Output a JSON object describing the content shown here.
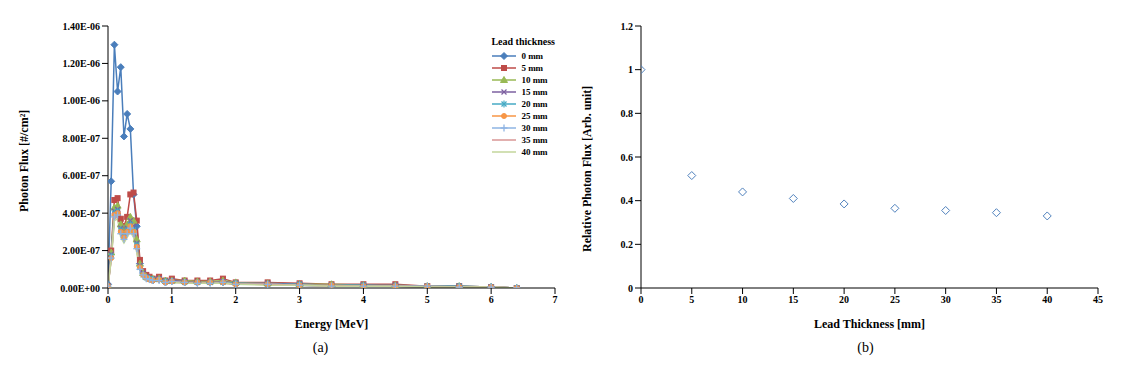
{
  "chart_data": [
    {
      "type": "line",
      "caption": "(a)",
      "x_label": "Energy [MeV]",
      "y_label": "Photon Flux [#/cm²]",
      "legend_title": "Lead thickness",
      "legend": "upper right",
      "grid": false,
      "x": [
        0,
        0.05,
        0.1,
        0.15,
        0.2,
        0.25,
        0.3,
        0.35,
        0.4,
        0.45,
        0.5,
        0.55,
        0.6,
        0.65,
        0.7,
        0.8,
        0.9,
        1.0,
        1.2,
        1.4,
        1.6,
        1.8,
        2.0,
        2.5,
        3.0,
        3.5,
        4.0,
        4.5,
        5.0,
        5.5,
        6.0,
        6.4
      ],
      "xlim": [
        0,
        7
      ],
      "xticks": [
        0,
        1,
        2,
        3,
        4,
        5,
        6,
        7
      ],
      "ylim": [
        0,
        1.4e-06
      ],
      "yticks": [
        {
          "value": 0,
          "label": "0.00E+00"
        },
        {
          "value": 2e-07,
          "label": "2.00E-07"
        },
        {
          "value": 4e-07,
          "label": "4.00E-07"
        },
        {
          "value": 6e-07,
          "label": "6.00E-07"
        },
        {
          "value": 8e-07,
          "label": "8.00E-07"
        },
        {
          "value": 1e-06,
          "label": "1.00E-06"
        },
        {
          "value": 1.2e-06,
          "label": "1.20E-06"
        },
        {
          "value": 1.4e-06,
          "label": "1.40E-06"
        }
      ],
      "series": [
        {
          "name": "0 mm",
          "color": "#4a7ebb",
          "marker": "diamond",
          "values": [
            2e-08,
            5.7e-07,
            1.3e-06,
            1.05e-06,
            1.18e-06,
            8.1e-07,
            9.3e-07,
            8.5e-07,
            5e-07,
            3.3e-07,
            1.3e-07,
            8e-08,
            6e-08,
            5e-08,
            4e-08,
            5e-08,
            3e-08,
            4e-08,
            3e-08,
            3e-08,
            3e-08,
            3e-08,
            2e-08,
            2e-08,
            1.5e-08,
            1e-08,
            1e-08,
            1e-08,
            5e-09,
            5e-09,
            5e-09,
            0
          ]
        },
        {
          "name": "5 mm",
          "color": "#be4b48",
          "marker": "square",
          "values": [
            1e-08,
            2e-07,
            4.7e-07,
            4.8e-07,
            3.7e-07,
            3.3e-07,
            3.8e-07,
            5e-07,
            5.1e-07,
            3.6e-07,
            1.5e-07,
            9e-08,
            7e-08,
            6e-08,
            5e-08,
            6e-08,
            4e-08,
            5e-08,
            4e-08,
            4e-08,
            4e-08,
            5e-08,
            3e-08,
            3e-08,
            2.5e-08,
            2e-08,
            2e-08,
            2e-08,
            1e-08,
            1e-08,
            5e-09,
            0
          ]
        },
        {
          "name": "10 mm",
          "color": "#98b954",
          "marker": "triangle",
          "values": [
            1e-08,
            1.9e-07,
            4.3e-07,
            4.4e-07,
            3.4e-07,
            3e-07,
            3.4e-07,
            3.8e-07,
            3.6e-07,
            2.6e-07,
            1.3e-07,
            8e-08,
            6e-08,
            5e-08,
            5e-08,
            5e-08,
            4e-08,
            4e-08,
            4e-08,
            3.5e-08,
            3.5e-08,
            4e-08,
            3e-08,
            2.5e-08,
            2e-08,
            2e-08,
            1.5e-08,
            1.5e-08,
            1e-08,
            1e-08,
            5e-09,
            0
          ]
        },
        {
          "name": "15 mm",
          "color": "#7d60a0",
          "marker": "x",
          "values": [
            1e-08,
            1.8e-07,
            4.1e-07,
            4.2e-07,
            3.2e-07,
            2.9e-07,
            3.2e-07,
            3.6e-07,
            3.3e-07,
            2.4e-07,
            1.2e-07,
            8e-08,
            6e-08,
            5e-08,
            4.5e-08,
            5e-08,
            3.5e-08,
            4e-08,
            3.5e-08,
            3e-08,
            3e-08,
            3.5e-08,
            2.5e-08,
            2.5e-08,
            2e-08,
            1.5e-08,
            1.5e-08,
            1.5e-08,
            1e-08,
            1e-08,
            5e-09,
            0
          ]
        },
        {
          "name": "20 mm",
          "color": "#46aac5",
          "marker": "star",
          "values": [
            1e-08,
            1.7e-07,
            4e-07,
            4.1e-07,
            3.1e-07,
            2.8e-07,
            3.1e-07,
            3.4e-07,
            3.1e-07,
            2.3e-07,
            1.1e-07,
            7e-08,
            5.5e-08,
            5e-08,
            4.5e-08,
            4.5e-08,
            3.5e-08,
            3.5e-08,
            3e-08,
            3e-08,
            3e-08,
            3e-08,
            2.5e-08,
            2e-08,
            2e-08,
            1.5e-08,
            1.5e-08,
            1e-08,
            1e-08,
            1e-08,
            5e-09,
            0
          ]
        },
        {
          "name": "25 mm",
          "color": "#f79646",
          "marker": "circle",
          "values": [
            1e-08,
            1.6e-07,
            3.9e-07,
            4e-07,
            3e-07,
            2.7e-07,
            3e-07,
            3.3e-07,
            3e-07,
            2.2e-07,
            1.1e-07,
            7e-08,
            5.5e-08,
            4.5e-08,
            4e-08,
            4.5e-08,
            3e-08,
            3.5e-08,
            3e-08,
            3e-08,
            3e-08,
            3e-08,
            2e-08,
            2e-08,
            1.5e-08,
            1.5e-08,
            1e-08,
            1e-08,
            1e-08,
            5e-09,
            5e-09,
            0
          ]
        },
        {
          "name": "30 mm",
          "color": "#8eb4e3",
          "marker": "plus",
          "values": [
            1e-08,
            1.6e-07,
            3.8e-07,
            3.9e-07,
            2.9e-07,
            2.6e-07,
            2.9e-07,
            3.2e-07,
            2.9e-07,
            2.1e-07,
            1e-07,
            7e-08,
            5e-08,
            4.5e-08,
            4e-08,
            4e-08,
            3e-08,
            3.5e-08,
            3e-08,
            2.5e-08,
            2.5e-08,
            3e-08,
            2e-08,
            2e-08,
            1.5e-08,
            1e-08,
            1e-08,
            1e-08,
            1e-08,
            5e-09,
            5e-09,
            0
          ]
        },
        {
          "name": "35 mm",
          "color": "#d99694",
          "marker": "none",
          "values": [
            1e-08,
            1.5e-07,
            3.7e-07,
            3.8e-07,
            2.8e-07,
            2.5e-07,
            2.8e-07,
            3.1e-07,
            2.8e-07,
            2e-07,
            1e-07,
            6.5e-08,
            5e-08,
            4e-08,
            4e-08,
            4e-08,
            3e-08,
            3e-08,
            3e-08,
            2.5e-08,
            2.5e-08,
            2.5e-08,
            2e-08,
            2e-08,
            1.5e-08,
            1e-08,
            1e-08,
            1e-08,
            5e-09,
            5e-09,
            5e-09,
            0
          ]
        },
        {
          "name": "40 mm",
          "color": "#c3d69b",
          "marker": "none",
          "values": [
            1e-08,
            1.5e-07,
            3.6e-07,
            3.7e-07,
            2.7e-07,
            2.4e-07,
            2.7e-07,
            3e-07,
            2.7e-07,
            1.9e-07,
            9.5e-08,
            6e-08,
            5e-08,
            4e-08,
            3.5e-08,
            4e-08,
            3e-08,
            3e-08,
            2.5e-08,
            2.5e-08,
            2.5e-08,
            2.5e-08,
            2e-08,
            1.5e-08,
            1.5e-08,
            1e-08,
            1e-08,
            1e-08,
            5e-09,
            5e-09,
            5e-09,
            0
          ]
        }
      ]
    },
    {
      "type": "scatter",
      "caption": "(b)",
      "x_label": "Lead Thickness [mm]",
      "y_label": "Relative Photon Flux [Arb. unit]",
      "grid": false,
      "x": [
        0,
        5,
        10,
        15,
        20,
        25,
        30,
        35,
        40
      ],
      "values": [
        1,
        0.515,
        0.44,
        0.41,
        0.385,
        0.365,
        0.355,
        0.345,
        0.33
      ],
      "color": "#4f81bd",
      "marker": "diamond",
      "xlim": [
        0,
        45
      ],
      "xticks": [
        0,
        5,
        10,
        15,
        20,
        25,
        30,
        35,
        40,
        45
      ],
      "ylim": [
        0,
        1.2
      ],
      "yticks": [
        0,
        0.2,
        0.4,
        0.6,
        0.8,
        1,
        1.2
      ]
    }
  ]
}
